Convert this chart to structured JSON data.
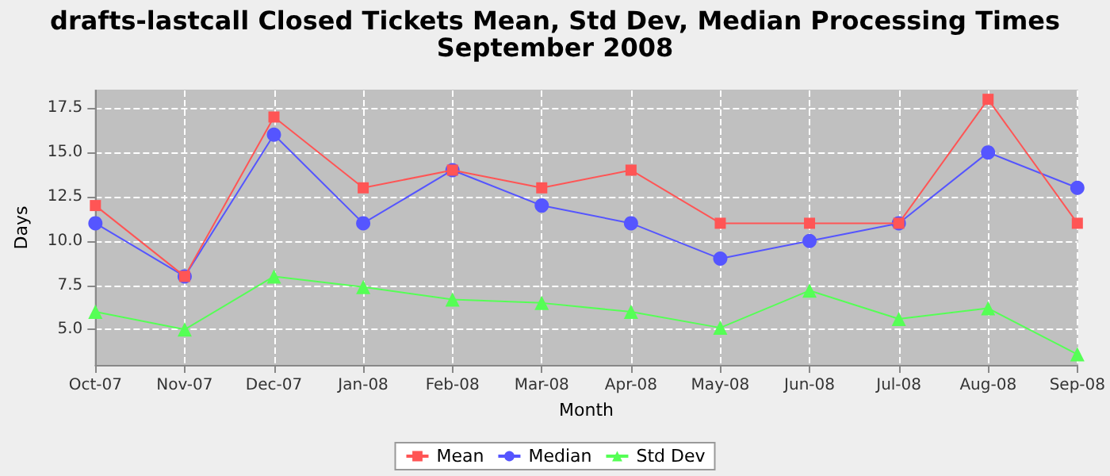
{
  "chart_data": {
    "type": "line",
    "title": "drafts-lastcall Closed Tickets Mean, Std Dev, Median Processing Times",
    "subtitle": "September 2008",
    "xlabel": "Month",
    "ylabel": "Days",
    "categories": [
      "Oct-07",
      "Nov-07",
      "Dec-07",
      "Jan-08",
      "Feb-08",
      "Mar-08",
      "Apr-08",
      "May-08",
      "Jun-08",
      "Jul-08",
      "Aug-08",
      "Sep-08"
    ],
    "series": [
      {
        "name": "Mean",
        "color": "#ff5555",
        "marker": "square",
        "values": [
          12,
          8,
          17,
          13,
          14,
          13,
          14,
          11,
          11,
          11,
          18,
          11
        ]
      },
      {
        "name": "Median",
        "color": "#5555ff",
        "marker": "circle",
        "values": [
          11,
          8,
          16,
          11,
          14,
          12,
          11,
          9,
          10,
          11,
          15,
          13
        ]
      },
      {
        "name": "Std Dev",
        "color": "#55ff55",
        "marker": "triangle",
        "values": [
          6.0,
          5.0,
          8.0,
          7.4,
          6.7,
          6.5,
          6.0,
          5.1,
          7.2,
          5.6,
          6.2,
          3.6
        ]
      }
    ],
    "ylim": [
      3.0,
      18.5
    ],
    "yticks": [
      {
        "value": 5,
        "label": "5.0"
      },
      {
        "value": 7.5,
        "label": "7.5"
      },
      {
        "value": 10,
        "label": "10.0"
      },
      {
        "value": 12.5,
        "label": "12.5"
      },
      {
        "value": 15,
        "label": "15.0"
      },
      {
        "value": 17.5,
        "label": "17.5"
      }
    ],
    "grid": true,
    "legend": "bottom",
    "line_style": "solid"
  }
}
